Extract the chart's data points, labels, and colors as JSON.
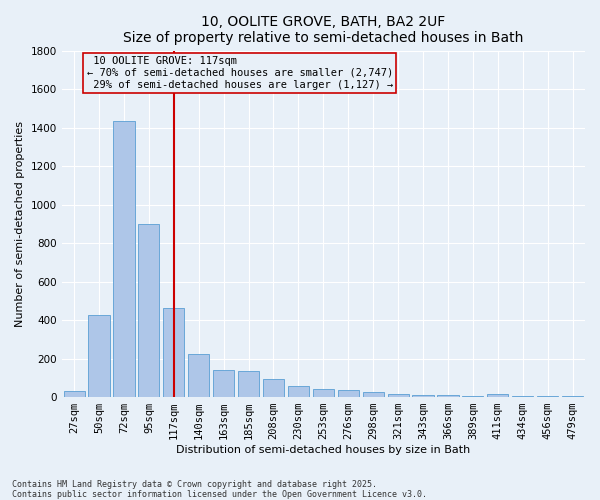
{
  "title": "10, OOLITE GROVE, BATH, BA2 2UF",
  "subtitle": "Size of property relative to semi-detached houses in Bath",
  "xlabel": "Distribution of semi-detached houses by size in Bath",
  "ylabel": "Number of semi-detached properties",
  "categories": [
    "27sqm",
    "50sqm",
    "72sqm",
    "95sqm",
    "117sqm",
    "140sqm",
    "163sqm",
    "185sqm",
    "208sqm",
    "230sqm",
    "253sqm",
    "276sqm",
    "298sqm",
    "321sqm",
    "343sqm",
    "366sqm",
    "389sqm",
    "411sqm",
    "434sqm",
    "456sqm",
    "479sqm"
  ],
  "values": [
    30,
    425,
    1435,
    900,
    465,
    225,
    140,
    135,
    95,
    55,
    40,
    35,
    25,
    18,
    12,
    10,
    8,
    15,
    7,
    5,
    4
  ],
  "bar_color": "#aec6e8",
  "bar_edge_color": "#5a9fd4",
  "marker_index": 4,
  "marker_label": "10 OOLITE GROVE: 117sqm",
  "pct_smaller": "70%",
  "n_smaller": "2,747",
  "pct_larger": "29%",
  "n_larger": "1,127",
  "vline_color": "#cc0000",
  "footer1": "Contains HM Land Registry data © Crown copyright and database right 2025.",
  "footer2": "Contains public sector information licensed under the Open Government Licence v3.0.",
  "ylim": [
    0,
    1800
  ],
  "yticks": [
    0,
    200,
    400,
    600,
    800,
    1000,
    1200,
    1400,
    1600,
    1800
  ],
  "bg_color": "#e8f0f8",
  "grid_color": "#ffffff",
  "title_fontsize": 10,
  "axis_fontsize": 8,
  "tick_fontsize": 7.5
}
